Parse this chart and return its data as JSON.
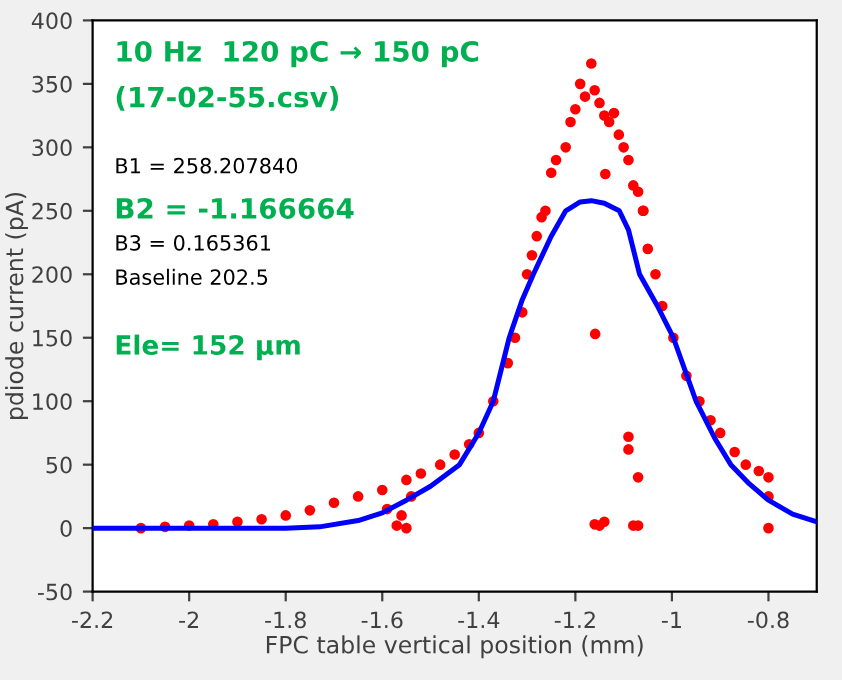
{
  "chart_data": {
    "type": "scatter",
    "xlabel": "FPC table vertical position (mm)",
    "ylabel": "pdiode current (pA)",
    "xlim": [
      -2.2,
      -0.7
    ],
    "ylim": [
      -50,
      400
    ],
    "xticks": [
      -2.2,
      -2,
      -1.8,
      -1.6,
      -1.4,
      -1.2,
      -1,
      -0.8
    ],
    "yticks": [
      -50,
      0,
      50,
      100,
      150,
      200,
      250,
      300,
      350,
      400
    ],
    "grid": false,
    "annotations": [
      "10 Hz  120 pC → 150 pC",
      "(17-02-55.csv)",
      "B1 = 258.207840",
      "B2 = -1.166664",
      "B3 = 0.165361",
      "Baseline 202.5",
      "Ele= 152 µm"
    ],
    "series": [
      {
        "color": "#ff0000",
        "marker": "circle",
        "x": [
          -2.1,
          -2.05,
          -2.0,
          -1.95,
          -1.9,
          -1.85,
          -1.8,
          -1.75,
          -1.7,
          -1.65,
          -1.6,
          -1.55,
          -1.52,
          -1.48,
          -1.45,
          -1.42,
          -1.4,
          -1.37,
          -1.34,
          -1.325,
          -1.31,
          -1.3,
          -1.29,
          -1.28,
          -1.27,
          -1.262,
          -1.25,
          -1.24,
          -1.22,
          -1.21,
          -1.2,
          -1.19,
          -1.18,
          -1.167,
          -1.16,
          -1.15,
          -1.14,
          -1.13,
          -1.12,
          -1.11,
          -1.1,
          -1.09,
          -1.08,
          -1.07,
          -1.06,
          -1.059,
          -1.05,
          -1.034,
          -1.02,
          -0.997,
          -0.97,
          -0.943,
          -0.92,
          -0.9,
          -0.87,
          -0.847,
          -0.82,
          -0.8,
          -0.8,
          -0.8,
          -1.57,
          -1.55,
          -1.59,
          -1.56,
          -1.54,
          -1.15,
          -1.14,
          -1.16,
          -1.08,
          -1.07,
          -1.09,
          -1.09,
          -1.07,
          -1.159,
          -1.138
        ],
        "values": [
          0,
          1,
          2,
          3,
          5,
          7,
          10,
          14,
          20,
          25,
          30,
          38,
          43,
          50,
          58,
          66,
          75,
          100,
          130,
          150,
          170,
          200,
          215,
          230,
          245,
          250,
          280,
          290,
          300,
          320,
          330,
          350,
          340,
          366,
          345,
          335,
          325,
          320,
          327,
          310,
          300,
          290,
          270,
          265,
          250,
          250,
          220,
          200,
          175,
          150,
          120,
          100,
          85,
          75,
          60,
          50,
          45,
          40,
          25,
          0,
          2,
          0,
          15,
          10,
          25,
          2,
          5,
          3,
          2,
          2,
          72,
          62,
          40,
          153,
          279
        ]
      },
      {
        "type": "line",
        "color": "#0000ff",
        "marker": "none",
        "x": [
          -2.2,
          -1.9,
          -1.8,
          -1.73,
          -1.65,
          -1.6,
          -1.55,
          -1.5,
          -1.44,
          -1.4,
          -1.37,
          -1.337,
          -1.31,
          -1.287,
          -1.25,
          -1.22,
          -1.19,
          -1.167,
          -1.14,
          -1.109,
          -1.09,
          -1.067,
          -1.03,
          -0.997,
          -0.95,
          -0.91,
          -0.878,
          -0.84,
          -0.8,
          -0.75,
          -0.7
        ],
        "values": [
          0,
          0,
          0,
          1,
          6,
          12,
          22,
          33,
          50,
          75,
          100,
          150,
          180,
          200,
          230,
          250,
          257,
          258,
          256,
          250,
          235,
          200,
          175,
          150,
          100,
          70,
          50,
          35,
          22,
          11,
          5
        ]
      }
    ]
  }
}
